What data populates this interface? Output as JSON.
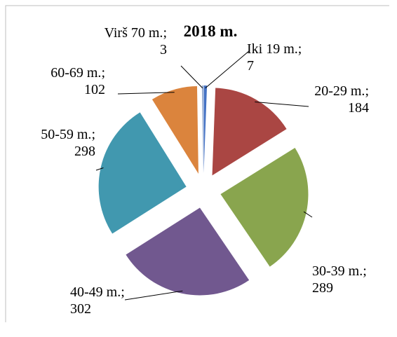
{
  "chart_data": {
    "type": "pie",
    "title": "2018 m.",
    "categories": [
      "Iki 19 m.",
      "20-29 m.",
      "30-39 m.",
      "40-49 m.",
      "50-59 m.",
      "60-69 m.",
      "Virš 70 m."
    ],
    "values": [
      7,
      184,
      289,
      302,
      298,
      102,
      3
    ],
    "colors": [
      "#4472c4",
      "#aa4643",
      "#89a54e",
      "#71588f",
      "#4198af",
      "#db843d",
      "#93a9cf"
    ],
    "label_separator": ";",
    "exploded": true
  }
}
